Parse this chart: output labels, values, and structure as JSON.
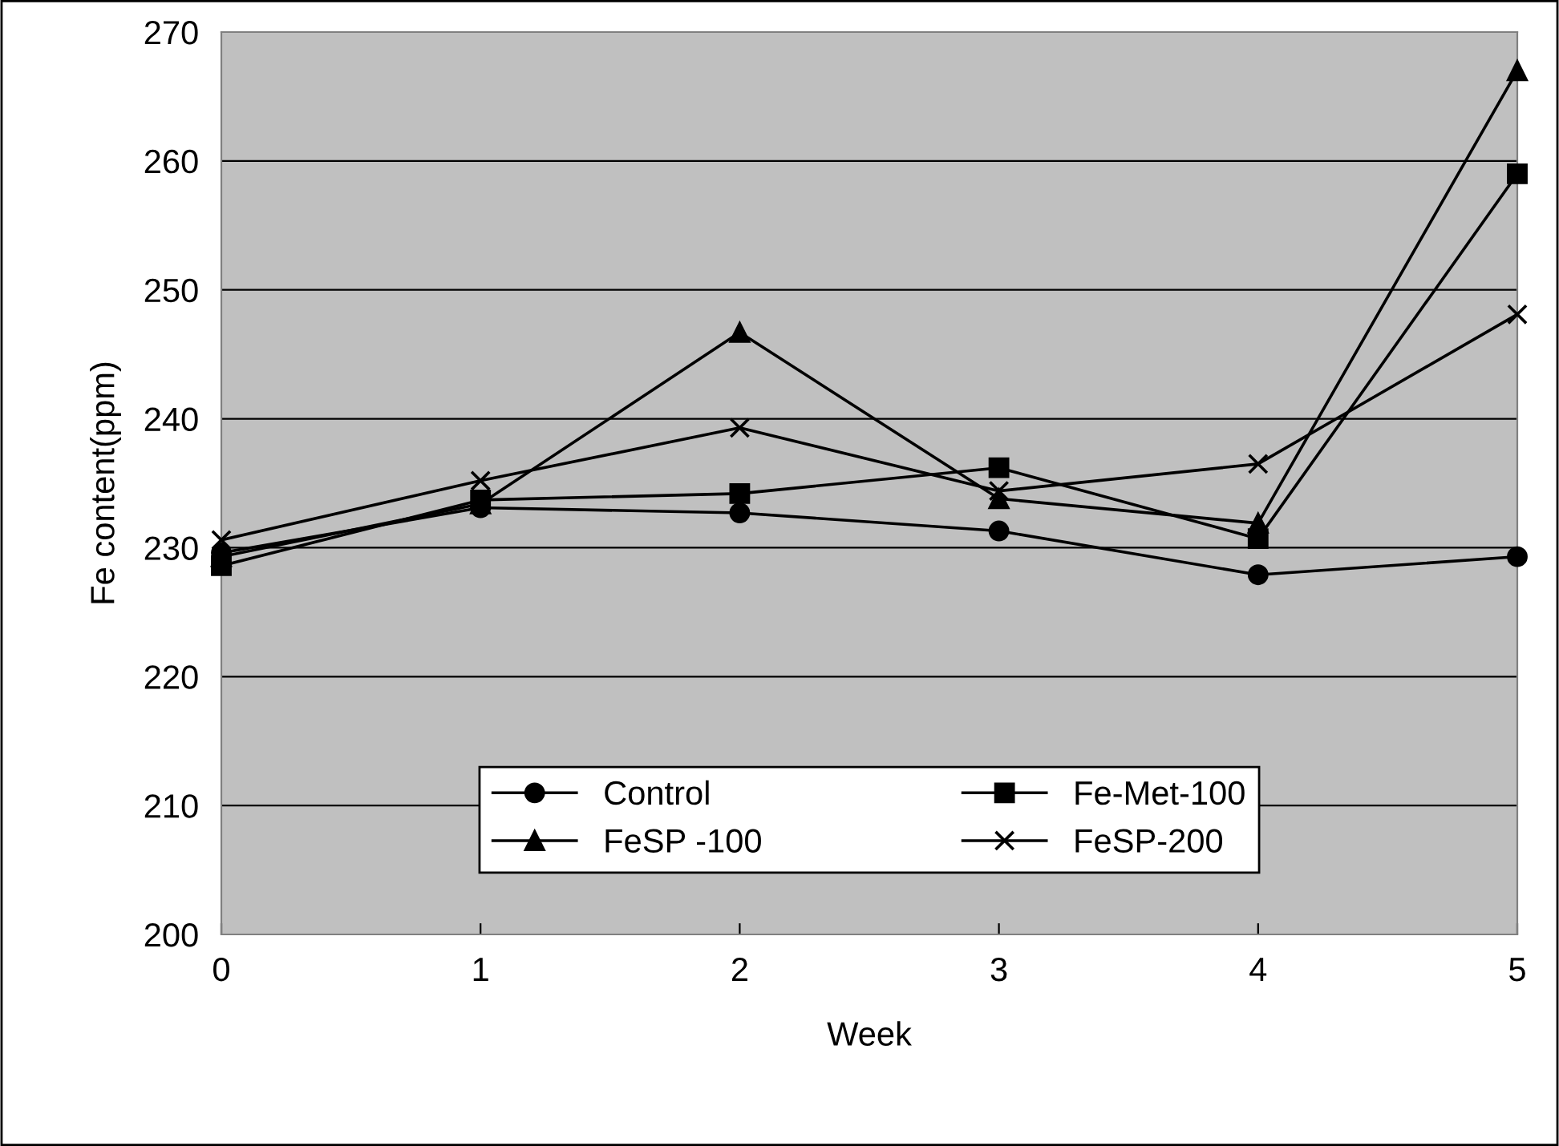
{
  "chart_data": {
    "type": "line",
    "xlabel": "Week",
    "ylabel": "Fe content(ppm)",
    "x": [
      0,
      1,
      2,
      3,
      4,
      5
    ],
    "xlim": [
      0,
      5
    ],
    "xticks": [
      0,
      1,
      2,
      3,
      4,
      5
    ],
    "ylim": [
      200,
      270
    ],
    "yticks": [
      200,
      210,
      220,
      230,
      240,
      250,
      260,
      270
    ],
    "grid": "y",
    "legend": "bottom",
    "series": [
      {
        "name": "Control",
        "color": "#000000",
        "marker": "circle",
        "values": [
          229.6,
          233.1,
          232.7,
          231.3,
          227.9,
          229.3
        ]
      },
      {
        "name": "Fe-Met-100",
        "color": "#000000",
        "marker": "square",
        "values": [
          228.6,
          233.7,
          234.2,
          236.2,
          230.7,
          259.0
        ]
      },
      {
        "name": "FeSP -100",
        "color": "#000000",
        "marker": "triangle",
        "values": [
          229.3,
          233.4,
          246.7,
          233.8,
          231.9,
          267.0
        ]
      },
      {
        "name": "FeSP-200",
        "color": "#000000",
        "marker": "cross",
        "values": [
          230.6,
          235.2,
          239.3,
          234.4,
          236.5,
          248.1
        ]
      }
    ]
  }
}
